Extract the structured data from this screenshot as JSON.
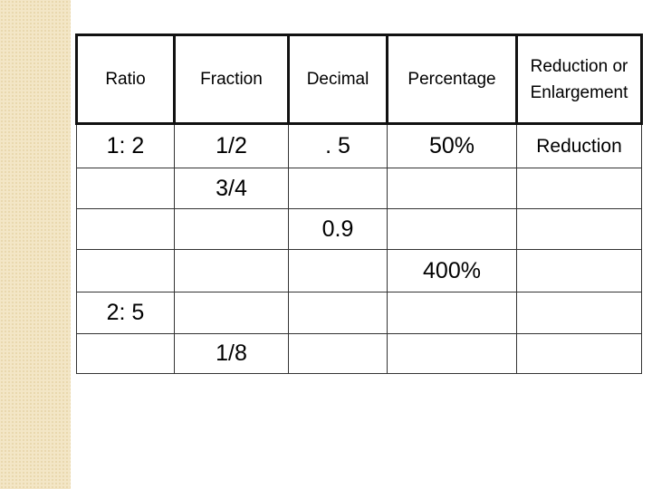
{
  "table": {
    "header": [
      "Ratio",
      "Fraction",
      "Decimal",
      "Percentage",
      "Reduction or Enlargement"
    ],
    "rows": [
      [
        "1: 2",
        "1/2",
        ". 5",
        "50%",
        "Reduction"
      ],
      [
        null,
        "3/4",
        null,
        null,
        null
      ],
      [
        null,
        null,
        "0.9",
        null,
        null
      ],
      [
        null,
        null,
        null,
        "400%",
        null
      ],
      [
        "2: 5",
        null,
        null,
        null,
        null
      ],
      [
        null,
        "1/8",
        null,
        null,
        null
      ]
    ]
  }
}
